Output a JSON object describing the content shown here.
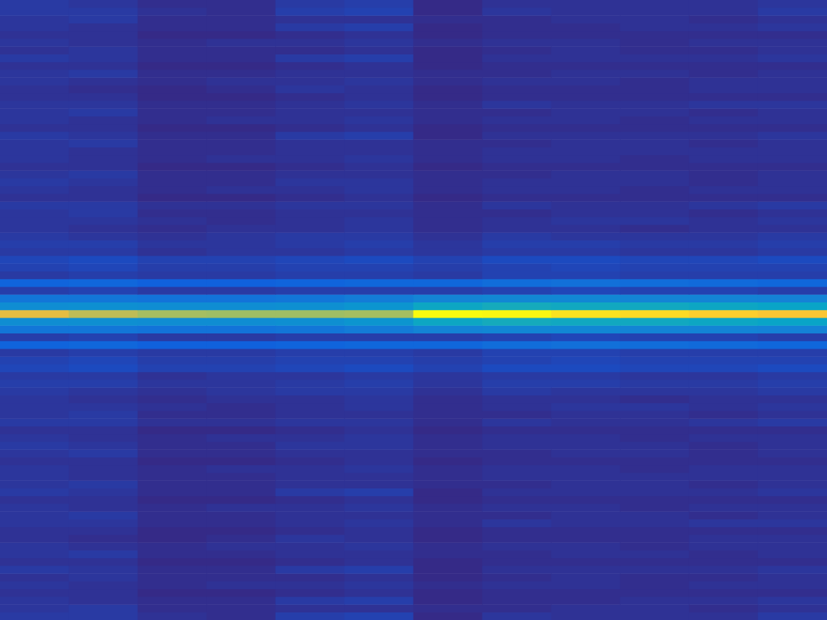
{
  "chart_data": {
    "type": "heatmap",
    "tick_labels": false,
    "cells": [
      [
        0.05,
        0.04,
        0.02,
        0.02,
        0.05,
        0.06,
        0.01,
        0.03,
        0.03,
        0.03,
        0.03,
        0.04
      ],
      [
        0.05,
        0.05,
        0.03,
        0.02,
        0.06,
        0.07,
        0.01,
        0.04,
        0.03,
        0.03,
        0.03,
        0.05
      ],
      [
        0.04,
        0.05,
        0.02,
        0.02,
        0.03,
        0.03,
        0.02,
        0.02,
        0.03,
        0.03,
        0.02,
        0.03
      ],
      [
        0.04,
        0.03,
        0.02,
        0.02,
        0.05,
        0.06,
        0.01,
        0.02,
        0.02,
        0.03,
        0.03,
        0.04
      ],
      [
        0.03,
        0.03,
        0.01,
        0.01,
        0.02,
        0.03,
        0.01,
        0.02,
        0.02,
        0.02,
        0.02,
        0.02
      ],
      [
        0.04,
        0.03,
        0.02,
        0.03,
        0.03,
        0.04,
        0.02,
        0.03,
        0.03,
        0.02,
        0.03,
        0.03
      ],
      [
        0.03,
        0.04,
        0.02,
        0.02,
        0.02,
        0.03,
        0.01,
        0.02,
        0.03,
        0.02,
        0.02,
        0.03
      ],
      [
        0.05,
        0.04,
        0.02,
        0.02,
        0.05,
        0.06,
        0.01,
        0.03,
        0.03,
        0.03,
        0.03,
        0.04
      ],
      [
        0.03,
        0.03,
        0.01,
        0.01,
        0.02,
        0.03,
        0.01,
        0.02,
        0.02,
        0.02,
        0.02,
        0.02
      ],
      [
        0.04,
        0.05,
        0.02,
        0.02,
        0.03,
        0.03,
        0.02,
        0.02,
        0.03,
        0.03,
        0.02,
        0.03
      ],
      [
        0.04,
        0.03,
        0.02,
        0.03,
        0.03,
        0.04,
        0.02,
        0.03,
        0.03,
        0.02,
        0.03,
        0.03
      ],
      [
        0.03,
        0.02,
        0.01,
        0.02,
        0.04,
        0.03,
        0.01,
        0.02,
        0.02,
        0.02,
        0.03,
        0.03
      ],
      [
        0.03,
        0.03,
        0.01,
        0.01,
        0.02,
        0.03,
        0.01,
        0.02,
        0.02,
        0.02,
        0.02,
        0.02
      ],
      [
        0.04,
        0.04,
        0.02,
        0.02,
        0.03,
        0.04,
        0.02,
        0.04,
        0.03,
        0.03,
        0.04,
        0.04
      ],
      [
        0.04,
        0.05,
        0.02,
        0.02,
        0.03,
        0.03,
        0.02,
        0.02,
        0.03,
        0.03,
        0.02,
        0.03
      ],
      [
        0.04,
        0.03,
        0.02,
        0.03,
        0.03,
        0.04,
        0.02,
        0.03,
        0.03,
        0.02,
        0.03,
        0.03
      ],
      [
        0.03,
        0.03,
        0.01,
        0.01,
        0.02,
        0.03,
        0.01,
        0.02,
        0.02,
        0.02,
        0.02,
        0.02
      ],
      [
        0.05,
        0.04,
        0.02,
        0.02,
        0.05,
        0.06,
        0.01,
        0.03,
        0.03,
        0.03,
        0.03,
        0.04
      ],
      [
        0.04,
        0.05,
        0.02,
        0.02,
        0.03,
        0.03,
        0.02,
        0.02,
        0.03,
        0.03,
        0.02,
        0.03
      ],
      [
        0.04,
        0.03,
        0.02,
        0.02,
        0.03,
        0.03,
        0.02,
        0.03,
        0.03,
        0.03,
        0.03,
        0.03
      ],
      [
        0.04,
        0.03,
        0.02,
        0.03,
        0.03,
        0.04,
        0.02,
        0.03,
        0.03,
        0.02,
        0.03,
        0.03
      ],
      [
        0.03,
        0.03,
        0.01,
        0.01,
        0.02,
        0.03,
        0.01,
        0.02,
        0.02,
        0.02,
        0.02,
        0.02
      ],
      [
        0.04,
        0.05,
        0.02,
        0.02,
        0.03,
        0.03,
        0.02,
        0.02,
        0.03,
        0.03,
        0.02,
        0.03
      ],
      [
        0.05,
        0.04,
        0.02,
        0.02,
        0.04,
        0.04,
        0.02,
        0.03,
        0.03,
        0.03,
        0.02,
        0.03
      ],
      [
        0.04,
        0.03,
        0.02,
        0.03,
        0.03,
        0.04,
        0.02,
        0.03,
        0.03,
        0.02,
        0.03,
        0.03
      ],
      [
        0.03,
        0.03,
        0.01,
        0.01,
        0.02,
        0.03,
        0.01,
        0.02,
        0.02,
        0.02,
        0.02,
        0.02
      ],
      [
        0.05,
        0.05,
        0.03,
        0.03,
        0.04,
        0.04,
        0.02,
        0.04,
        0.03,
        0.03,
        0.04,
        0.05
      ],
      [
        0.04,
        0.05,
        0.02,
        0.02,
        0.03,
        0.03,
        0.02,
        0.02,
        0.03,
        0.03,
        0.02,
        0.03
      ],
      [
        0.04,
        0.04,
        0.03,
        0.02,
        0.03,
        0.04,
        0.02,
        0.03,
        0.04,
        0.04,
        0.03,
        0.04
      ],
      [
        0.04,
        0.03,
        0.02,
        0.03,
        0.03,
        0.04,
        0.02,
        0.03,
        0.03,
        0.02,
        0.03,
        0.03
      ],
      [
        0.05,
        0.04,
        0.03,
        0.04,
        0.05,
        0.05,
        0.03,
        0.05,
        0.04,
        0.04,
        0.04,
        0.05
      ],
      [
        0.06,
        0.06,
        0.04,
        0.04,
        0.05,
        0.06,
        0.04,
        0.06,
        0.06,
        0.05,
        0.05,
        0.06
      ],
      [
        0.05,
        0.05,
        0.03,
        0.04,
        0.04,
        0.05,
        0.04,
        0.05,
        0.05,
        0.04,
        0.04,
        0.05
      ],
      [
        0.08,
        0.09,
        0.07,
        0.07,
        0.08,
        0.09,
        0.07,
        0.09,
        0.09,
        0.08,
        0.08,
        0.09
      ],
      [
        0.07,
        0.08,
        0.06,
        0.06,
        0.07,
        0.07,
        0.06,
        0.07,
        0.08,
        0.07,
        0.07,
        0.07
      ],
      [
        0.05,
        0.06,
        0.05,
        0.05,
        0.06,
        0.06,
        0.05,
        0.07,
        0.07,
        0.06,
        0.06,
        0.06
      ],
      [
        0.16,
        0.17,
        0.15,
        0.15,
        0.16,
        0.17,
        0.17,
        0.19,
        0.2,
        0.19,
        0.18,
        0.17
      ],
      [
        0.06,
        0.07,
        0.05,
        0.05,
        0.06,
        0.06,
        0.06,
        0.07,
        0.08,
        0.07,
        0.07,
        0.06
      ],
      [
        0.22,
        0.22,
        0.21,
        0.21,
        0.22,
        0.24,
        0.27,
        0.28,
        0.28,
        0.27,
        0.27,
        0.26
      ],
      [
        0.3,
        0.31,
        0.3,
        0.3,
        0.31,
        0.33,
        0.4,
        0.42,
        0.41,
        0.41,
        0.4,
        0.39
      ],
      [
        0.78,
        0.7,
        0.66,
        0.65,
        0.65,
        0.66,
        1.0,
        0.99,
        0.94,
        0.92,
        0.89,
        0.86
      ],
      [
        0.3,
        0.31,
        0.3,
        0.3,
        0.31,
        0.33,
        0.4,
        0.42,
        0.41,
        0.41,
        0.4,
        0.39
      ],
      [
        0.22,
        0.22,
        0.21,
        0.21,
        0.22,
        0.24,
        0.27,
        0.28,
        0.28,
        0.27,
        0.27,
        0.26
      ],
      [
        0.06,
        0.07,
        0.05,
        0.05,
        0.06,
        0.06,
        0.06,
        0.07,
        0.08,
        0.07,
        0.07,
        0.06
      ],
      [
        0.16,
        0.17,
        0.15,
        0.15,
        0.16,
        0.17,
        0.17,
        0.19,
        0.2,
        0.19,
        0.18,
        0.17
      ],
      [
        0.05,
        0.06,
        0.05,
        0.05,
        0.06,
        0.06,
        0.05,
        0.07,
        0.07,
        0.06,
        0.06,
        0.06
      ],
      [
        0.07,
        0.08,
        0.06,
        0.06,
        0.07,
        0.07,
        0.06,
        0.07,
        0.08,
        0.07,
        0.07,
        0.07
      ],
      [
        0.08,
        0.09,
        0.07,
        0.07,
        0.08,
        0.09,
        0.07,
        0.09,
        0.09,
        0.08,
        0.08,
        0.09
      ],
      [
        0.05,
        0.05,
        0.03,
        0.04,
        0.04,
        0.05,
        0.04,
        0.05,
        0.05,
        0.04,
        0.04,
        0.05
      ],
      [
        0.06,
        0.06,
        0.04,
        0.04,
        0.05,
        0.06,
        0.04,
        0.06,
        0.06,
        0.05,
        0.05,
        0.06
      ],
      [
        0.05,
        0.04,
        0.03,
        0.04,
        0.05,
        0.05,
        0.03,
        0.05,
        0.04,
        0.04,
        0.04,
        0.05
      ],
      [
        0.04,
        0.03,
        0.02,
        0.03,
        0.03,
        0.04,
        0.02,
        0.03,
        0.03,
        0.02,
        0.03,
        0.03
      ],
      [
        0.04,
        0.04,
        0.03,
        0.02,
        0.03,
        0.04,
        0.02,
        0.03,
        0.04,
        0.04,
        0.03,
        0.04
      ],
      [
        0.04,
        0.05,
        0.02,
        0.02,
        0.03,
        0.03,
        0.02,
        0.02,
        0.03,
        0.03,
        0.02,
        0.03
      ],
      [
        0.05,
        0.05,
        0.03,
        0.03,
        0.04,
        0.04,
        0.02,
        0.04,
        0.03,
        0.03,
        0.04,
        0.05
      ],
      [
        0.03,
        0.03,
        0.01,
        0.01,
        0.02,
        0.03,
        0.01,
        0.02,
        0.02,
        0.02,
        0.02,
        0.02
      ],
      [
        0.04,
        0.03,
        0.02,
        0.03,
        0.03,
        0.04,
        0.02,
        0.03,
        0.03,
        0.02,
        0.03,
        0.03
      ],
      [
        0.05,
        0.04,
        0.02,
        0.02,
        0.04,
        0.04,
        0.02,
        0.03,
        0.03,
        0.03,
        0.02,
        0.03
      ],
      [
        0.04,
        0.05,
        0.02,
        0.02,
        0.03,
        0.03,
        0.02,
        0.02,
        0.03,
        0.03,
        0.02,
        0.03
      ],
      [
        0.03,
        0.03,
        0.01,
        0.01,
        0.02,
        0.03,
        0.01,
        0.02,
        0.02,
        0.02,
        0.02,
        0.02
      ],
      [
        0.04,
        0.03,
        0.02,
        0.03,
        0.03,
        0.04,
        0.02,
        0.03,
        0.03,
        0.02,
        0.03,
        0.03
      ],
      [
        0.04,
        0.03,
        0.02,
        0.02,
        0.03,
        0.03,
        0.02,
        0.03,
        0.03,
        0.03,
        0.03,
        0.03
      ],
      [
        0.04,
        0.05,
        0.02,
        0.02,
        0.03,
        0.03,
        0.02,
        0.02,
        0.03,
        0.03,
        0.02,
        0.03
      ],
      [
        0.05,
        0.04,
        0.02,
        0.02,
        0.05,
        0.06,
        0.01,
        0.03,
        0.03,
        0.03,
        0.03,
        0.04
      ],
      [
        0.03,
        0.03,
        0.01,
        0.01,
        0.02,
        0.03,
        0.01,
        0.02,
        0.02,
        0.02,
        0.02,
        0.02
      ],
      [
        0.04,
        0.03,
        0.02,
        0.03,
        0.03,
        0.04,
        0.02,
        0.03,
        0.03,
        0.02,
        0.03,
        0.03
      ],
      [
        0.04,
        0.05,
        0.02,
        0.02,
        0.03,
        0.03,
        0.02,
        0.02,
        0.03,
        0.03,
        0.02,
        0.03
      ],
      [
        0.04,
        0.04,
        0.02,
        0.02,
        0.03,
        0.04,
        0.02,
        0.04,
        0.03,
        0.03,
        0.04,
        0.04
      ],
      [
        0.03,
        0.03,
        0.01,
        0.01,
        0.02,
        0.03,
        0.01,
        0.02,
        0.02,
        0.02,
        0.02,
        0.02
      ],
      [
        0.03,
        0.02,
        0.01,
        0.02,
        0.04,
        0.03,
        0.01,
        0.02,
        0.02,
        0.02,
        0.03,
        0.03
      ],
      [
        0.04,
        0.03,
        0.02,
        0.03,
        0.03,
        0.04,
        0.02,
        0.03,
        0.03,
        0.02,
        0.03,
        0.03
      ],
      [
        0.04,
        0.05,
        0.02,
        0.02,
        0.03,
        0.03,
        0.02,
        0.02,
        0.03,
        0.03,
        0.02,
        0.03
      ],
      [
        0.03,
        0.03,
        0.01,
        0.01,
        0.02,
        0.03,
        0.01,
        0.02,
        0.02,
        0.02,
        0.02,
        0.02
      ],
      [
        0.05,
        0.04,
        0.02,
        0.02,
        0.05,
        0.06,
        0.01,
        0.03,
        0.03,
        0.03,
        0.03,
        0.04
      ],
      [
        0.03,
        0.04,
        0.02,
        0.02,
        0.02,
        0.03,
        0.01,
        0.02,
        0.03,
        0.02,
        0.02,
        0.03
      ],
      [
        0.04,
        0.03,
        0.02,
        0.03,
        0.03,
        0.04,
        0.02,
        0.03,
        0.03,
        0.02,
        0.03,
        0.03
      ],
      [
        0.03,
        0.03,
        0.01,
        0.01,
        0.02,
        0.03,
        0.01,
        0.02,
        0.02,
        0.02,
        0.02,
        0.02
      ],
      [
        0.04,
        0.03,
        0.02,
        0.02,
        0.05,
        0.06,
        0.01,
        0.02,
        0.02,
        0.03,
        0.03,
        0.04
      ],
      [
        0.04,
        0.05,
        0.02,
        0.02,
        0.03,
        0.03,
        0.02,
        0.02,
        0.03,
        0.03,
        0.02,
        0.03
      ],
      [
        0.05,
        0.05,
        0.03,
        0.02,
        0.06,
        0.07,
        0.01,
        0.04,
        0.03,
        0.03,
        0.03,
        0.05
      ]
    ]
  }
}
